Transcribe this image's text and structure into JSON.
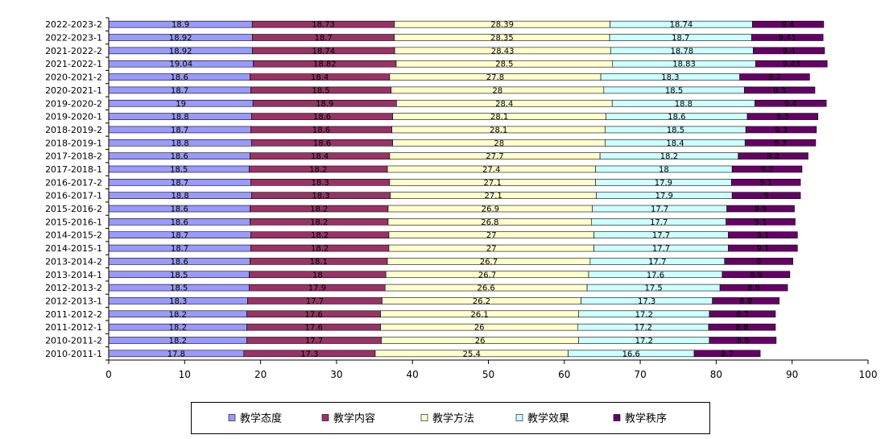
{
  "chart_data": {
    "type": "bar",
    "orientation": "horizontal",
    "stacked": true,
    "title": "",
    "xlabel": "",
    "ylabel": "",
    "xlim": [
      0,
      100
    ],
    "x_ticks": [
      0,
      10,
      20,
      30,
      40,
      50,
      60,
      70,
      80,
      90,
      100
    ],
    "grid": false,
    "legend_position": "bottom",
    "categories": [
      "2022-2023-2",
      "2022-2023-1",
      "2021-2022-2",
      "2021-2022-1",
      "2020-2021-2",
      "2020-2021-1",
      "2019-2020-2",
      "2019-2020-1",
      "2018-2019-2",
      "2018-2019-1",
      "2017-2018-2",
      "2017-2018-1",
      "2016-2017-2",
      "2016-2017-1",
      "2015-2016-2",
      "2015-2016-1",
      "2014-2015-2",
      "2014-2015-1",
      "2013-2014-2",
      "2013-2014-1",
      "2012-2013-2",
      "2012-2013-1",
      "2011-2012-2",
      "2011-2012-1",
      "2010-2011-2",
      "2010-2011-1"
    ],
    "series": [
      {
        "name": "教学态度",
        "color": "#9999ff",
        "values": [
          18.9,
          18.92,
          18.92,
          19.04,
          18.6,
          18.7,
          19,
          18.8,
          18.7,
          18.8,
          18.6,
          18.5,
          18.7,
          18.8,
          18.6,
          18.6,
          18.7,
          18.7,
          18.6,
          18.5,
          18.5,
          18.3,
          18.2,
          18.2,
          18.2,
          17.8
        ],
        "labels": [
          "18.9",
          "18.92",
          "18.92",
          "19.04",
          "18.6",
          "18.7",
          "19",
          "18.8",
          "18.7",
          "18.8",
          "18.6",
          "18.5",
          "18.7",
          "18.8",
          "18.6",
          "18.6",
          "18.7",
          "18.7",
          "18.6",
          "18.5",
          "18.5",
          "18.3",
          "18.2",
          "18.2",
          "18.2",
          "17.8"
        ]
      },
      {
        "name": "教学内容",
        "color": "#993366",
        "values": [
          18.73,
          18.7,
          18.74,
          18.82,
          18.4,
          18.5,
          18.9,
          18.6,
          18.6,
          18.6,
          18.4,
          18.2,
          18.3,
          18.3,
          18.2,
          18.2,
          18.2,
          18.2,
          18.1,
          18,
          17.9,
          17.7,
          17.6,
          17.6,
          17.7,
          17.3
        ],
        "labels": [
          "18.73",
          "18.7",
          "18.74",
          "18.82",
          "18.4",
          "18.5",
          "18.9",
          "18.6",
          "18.6",
          "18.6",
          "18.4",
          "18.2",
          "18.3",
          "18.3",
          "18.2",
          "18.2",
          "18.2",
          "18.2",
          "18.1",
          "18",
          "17.9",
          "17.7",
          "17.6",
          "17.6",
          "17.7",
          "17.3"
        ]
      },
      {
        "name": "教学方法",
        "color": "#ffffcc",
        "values": [
          28.39,
          28.35,
          28.43,
          28.5,
          27.8,
          28,
          28.4,
          28.1,
          28.1,
          28,
          27.7,
          27.4,
          27.1,
          27.1,
          26.9,
          26.8,
          27,
          27,
          26.7,
          26.7,
          26.6,
          26.2,
          26.1,
          26,
          26,
          25.4
        ],
        "labels": [
          "28.39",
          "28.35",
          "28.43",
          "28.5",
          "27.8",
          "28",
          "28.4",
          "28.1",
          "28.1",
          "28",
          "27.7",
          "27.4",
          "27.1",
          "27.1",
          "26.9",
          "26.8",
          "27",
          "27",
          "26.7",
          "26.7",
          "26.6",
          "26.2",
          "26.1",
          "26",
          "26",
          "25.4"
        ]
      },
      {
        "name": "教学效果",
        "color": "#ccffff",
        "values": [
          18.74,
          18.7,
          18.78,
          18.83,
          18.3,
          18.5,
          18.8,
          18.6,
          18.5,
          18.4,
          18.2,
          18,
          17.9,
          17.9,
          17.7,
          17.7,
          17.7,
          17.7,
          17.7,
          17.6,
          17.5,
          17.3,
          17.2,
          17.2,
          17.2,
          16.6
        ],
        "labels": [
          "18.74",
          "18.7",
          "18.78",
          "18.83",
          "18.3",
          "18.5",
          "18.8",
          "18.6",
          "18.5",
          "18.4",
          "18.2",
          "18",
          "17.9",
          "17.9",
          "17.7",
          "17.7",
          "17.7",
          "17.7",
          "17.7",
          "17.6",
          "17.5",
          "17.3",
          "17.2",
          "17.2",
          "17.2",
          "16.6"
        ]
      },
      {
        "name": "教学秩序",
        "color": "#660066",
        "values": [
          9.4,
          9.41,
          9.4,
          9.43,
          9.2,
          9.3,
          9.4,
          9.3,
          9.3,
          9.3,
          9.2,
          9.2,
          9.1,
          9,
          8.9,
          9.1,
          9.1,
          9.1,
          9,
          8.9,
          8.9,
          8.8,
          8.7,
          8.8,
          8.8,
          8.7
        ],
        "labels": [
          "9.4",
          "9.41",
          "9.4",
          "9.43",
          "9.2",
          "9.3",
          "9.4",
          "9.3",
          "9.3",
          "9.3",
          "9.2",
          "9.2",
          "9.1",
          "9",
          "8.9",
          "9.1",
          "9.1",
          "9.1",
          "9",
          "8.9",
          "8.9",
          "8.8",
          "8.7",
          "8.8",
          "8.8",
          "8.7"
        ]
      }
    ]
  }
}
